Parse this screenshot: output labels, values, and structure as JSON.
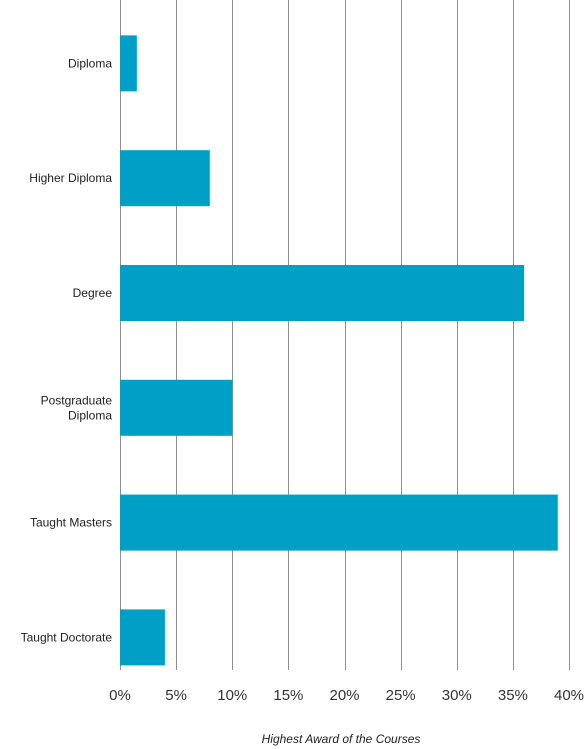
{
  "chart_data": {
    "type": "bar",
    "orientation": "horizontal",
    "categories": [
      "Diploma",
      "Higher Diploma",
      "Degree",
      "Postgraduate Diploma",
      "Taught Masters",
      "Taught Doctorate"
    ],
    "category_lines": [
      [
        "Diploma"
      ],
      [
        "Higher Diploma"
      ],
      [
        "Degree"
      ],
      [
        "Postgraduate",
        "Diploma"
      ],
      [
        "Taught Masters"
      ],
      [
        "Taught Doctorate"
      ]
    ],
    "values": [
      1.5,
      8,
      36,
      10,
      39,
      4
    ],
    "unit": "%",
    "xlim": [
      0,
      40
    ],
    "x_ticks": [
      0,
      5,
      10,
      15,
      20,
      25,
      30,
      35,
      40
    ],
    "x_tick_labels": [
      "0%",
      "5%",
      "10%",
      "15%",
      "20%",
      "25%",
      "30%",
      "35%",
      "40%"
    ],
    "xlabel": "Highest Award of the Courses",
    "ylabel": "",
    "grid": true,
    "legend": "none",
    "bar_color": "#00a0c6"
  }
}
